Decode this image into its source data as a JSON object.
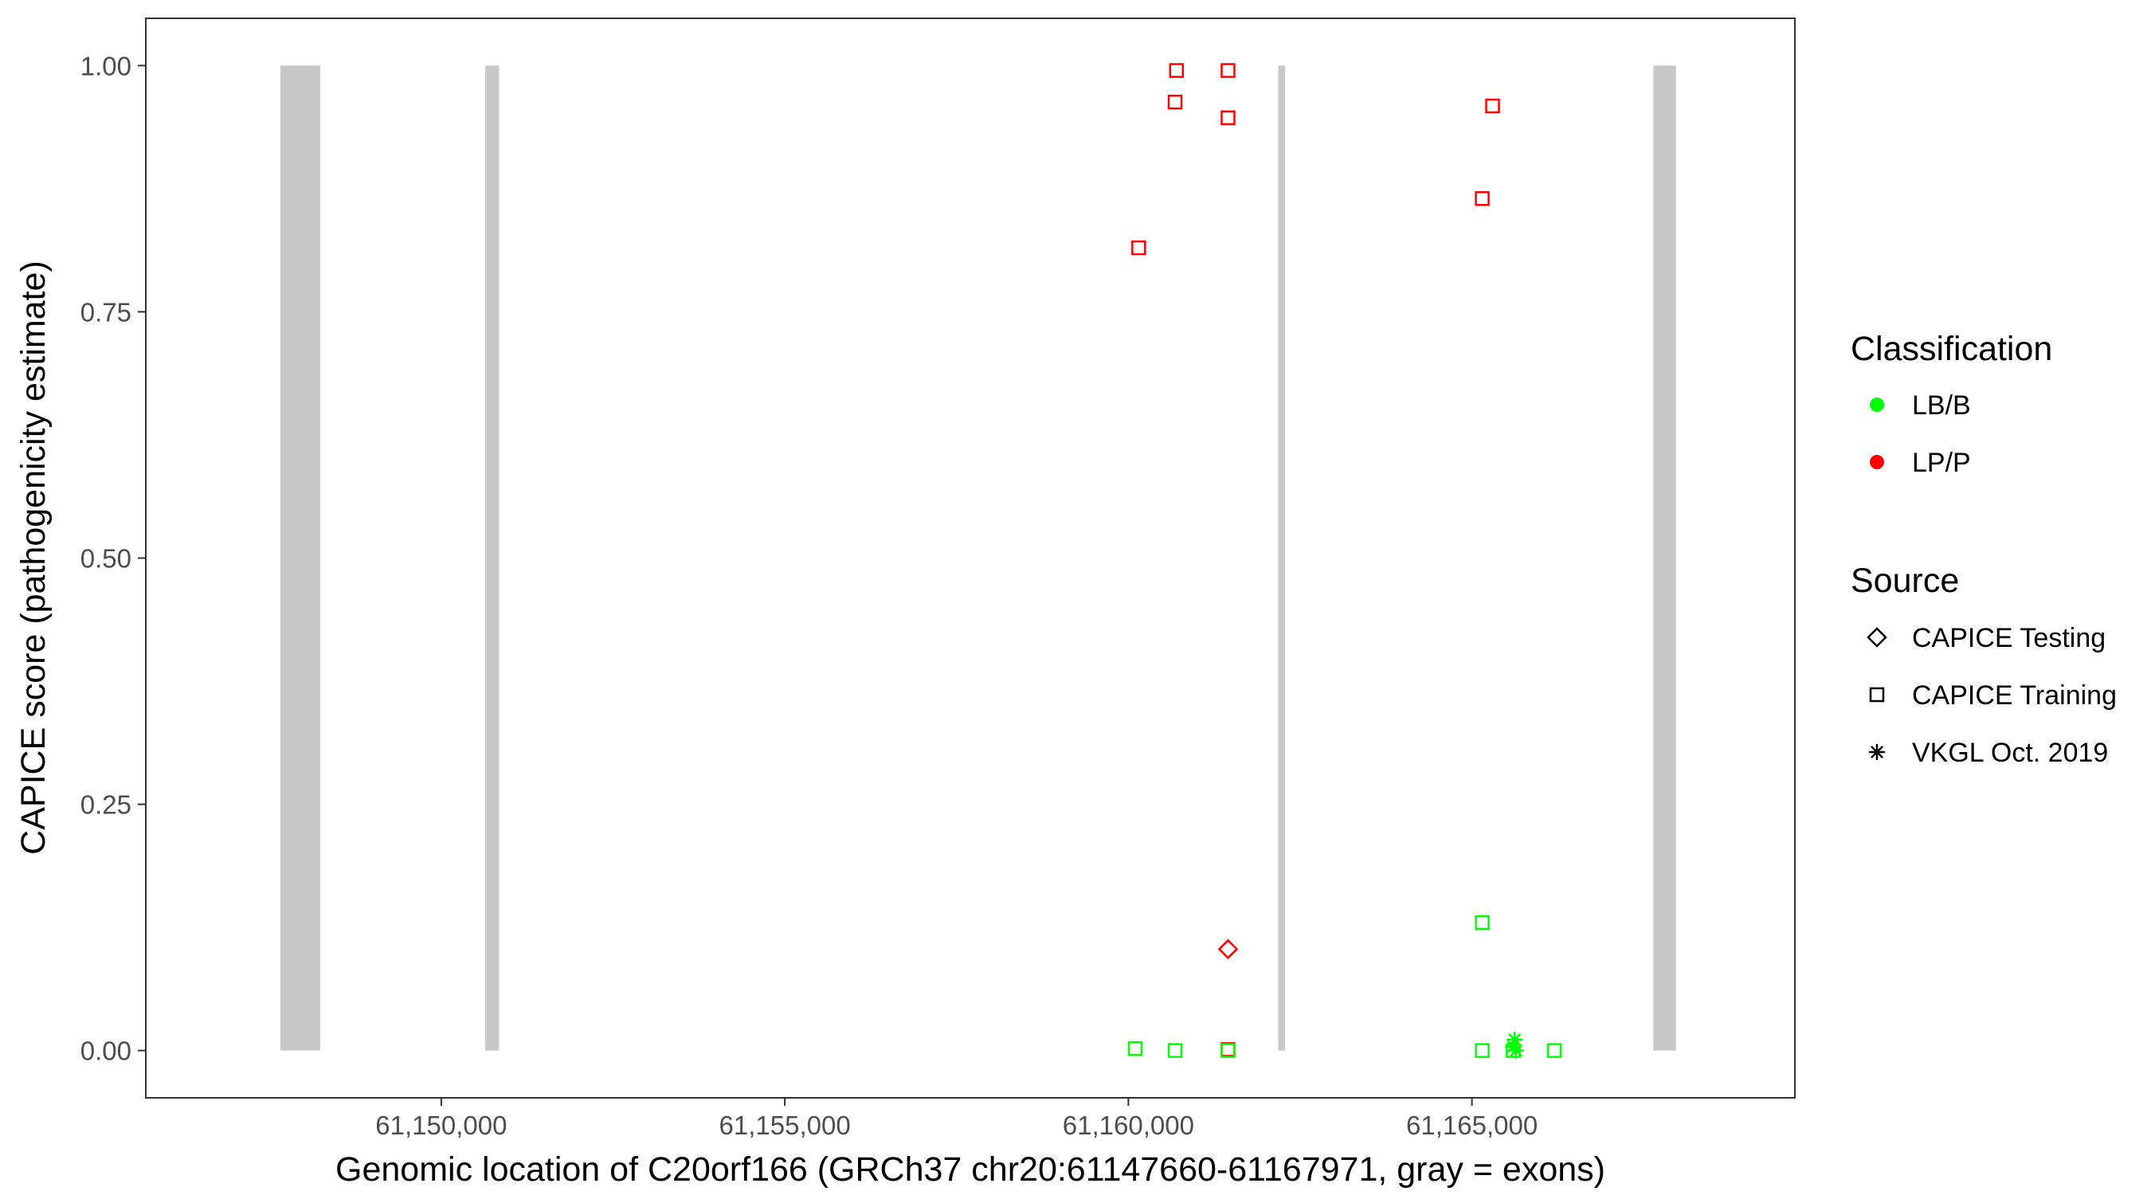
{
  "chart_data": {
    "type": "scatter",
    "xlabel": "Genomic location of C20orf166 (GRCh37 chr20:61147660-61167971, gray = exons)",
    "ylabel": "CAPICE score (pathogenicity estimate)",
    "xlim": [
      61145700,
      61169700
    ],
    "ylim": [
      -0.048,
      1.048
    ],
    "x_ticks": [
      61150000,
      61155000,
      61160000,
      61165000
    ],
    "x_tick_labels": [
      "61,150,000",
      "61,155,000",
      "61,160,000",
      "61,165,000"
    ],
    "y_ticks": [
      0,
      0.25,
      0.5,
      0.75,
      1.0
    ],
    "y_tick_labels": [
      "0.00",
      "0.25",
      "0.50",
      "0.75",
      "1.00"
    ],
    "grid": false,
    "exons": [
      {
        "start": 61147660,
        "end": 61148240
      },
      {
        "start": 61150640,
        "end": 61150840
      },
      {
        "start": 61162180,
        "end": 61162280
      },
      {
        "start": 61167640,
        "end": 61167971
      }
    ],
    "exon_color": "#c8c8c8",
    "points": [
      {
        "x": 61160150,
        "y": 0.815,
        "class": "LP/P",
        "source": "CAPICE Training"
      },
      {
        "x": 61160700,
        "y": 0.995,
        "class": "LP/P",
        "source": "CAPICE Training"
      },
      {
        "x": 61160680,
        "y": 0.963,
        "class": "LP/P",
        "source": "CAPICE Training"
      },
      {
        "x": 61161450,
        "y": 0.995,
        "class": "LP/P",
        "source": "CAPICE Training"
      },
      {
        "x": 61161450,
        "y": 0.947,
        "class": "LP/P",
        "source": "CAPICE Training"
      },
      {
        "x": 61165150,
        "y": 0.865,
        "class": "LP/P",
        "source": "CAPICE Training"
      },
      {
        "x": 61165300,
        "y": 0.959,
        "class": "LP/P",
        "source": "CAPICE Training"
      },
      {
        "x": 61161450,
        "y": 0.103,
        "class": "LP/P",
        "source": "CAPICE Testing"
      },
      {
        "x": 61161450,
        "y": 0.001,
        "class": "LP/P",
        "source": "CAPICE Training"
      },
      {
        "x": 61160100,
        "y": 0.002,
        "class": "LB/B",
        "source": "CAPICE Training"
      },
      {
        "x": 61160680,
        "y": 0.0,
        "class": "LB/B",
        "source": "CAPICE Training"
      },
      {
        "x": 61161450,
        "y": 0.0,
        "class": "LB/B",
        "source": "CAPICE Training"
      },
      {
        "x": 61165150,
        "y": 0.13,
        "class": "LB/B",
        "source": "CAPICE Training"
      },
      {
        "x": 61165150,
        "y": 0.0,
        "class": "LB/B",
        "source": "CAPICE Training"
      },
      {
        "x": 61165600,
        "y": 0.0,
        "class": "LB/B",
        "source": "CAPICE Training"
      },
      {
        "x": 61166200,
        "y": 0.0,
        "class": "LB/B",
        "source": "CAPICE Training"
      },
      {
        "x": 61165620,
        "y": 0.011,
        "class": "LB/B",
        "source": "VKGL Oct. 2019"
      },
      {
        "x": 61165600,
        "y": 0.004,
        "class": "LB/B",
        "source": "VKGL Oct. 2019"
      },
      {
        "x": 61165640,
        "y": 0.0,
        "class": "LB/B",
        "source": "VKGL Oct. 2019"
      }
    ],
    "legend": {
      "placement": "right",
      "classification_title": "Classification",
      "classification": [
        {
          "label": "LB/B",
          "color": "#00ff00"
        },
        {
          "label": "LP/P",
          "color": "#ff0000"
        }
      ],
      "source_title": "Source",
      "source": [
        {
          "label": "CAPICE Testing",
          "shape": "diamond"
        },
        {
          "label": "CAPICE Training",
          "shape": "square"
        },
        {
          "label": "VKGL Oct. 2019",
          "shape": "asterisk"
        }
      ]
    }
  }
}
